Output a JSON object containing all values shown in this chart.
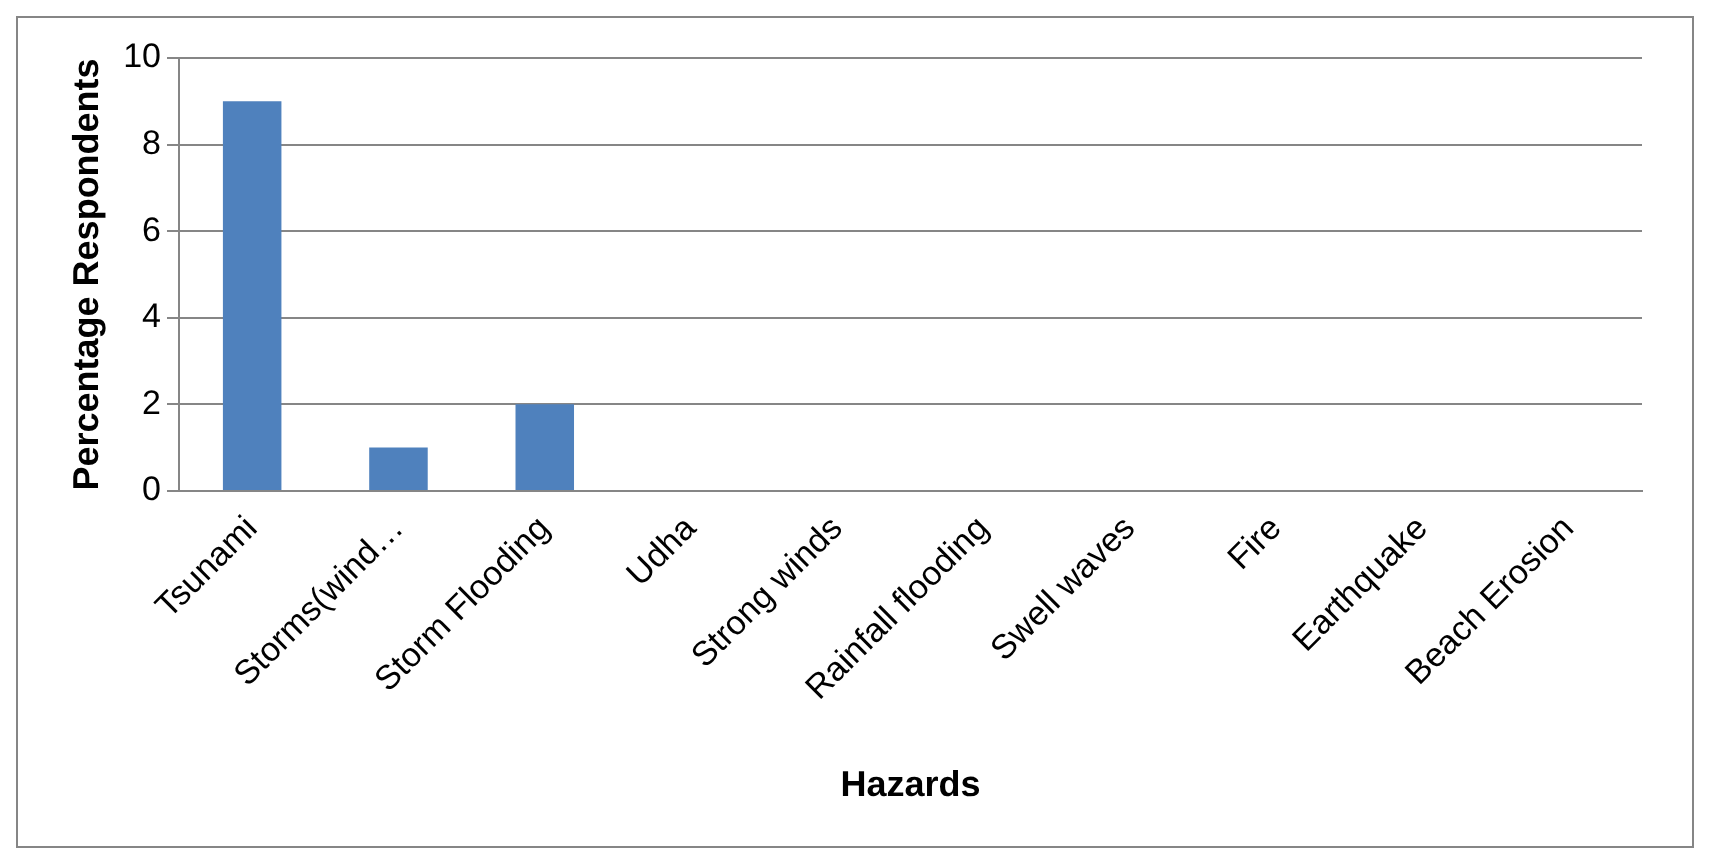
{
  "chart_data": {
    "type": "bar",
    "xlabel": "Hazards",
    "ylabel": "Percentage Respondents",
    "categories": [
      "Tsunami",
      "Storms(wind…",
      "Storm Flooding",
      "Udha",
      "Strong winds",
      "Rainfall flooding",
      "Swell waves",
      "Fire",
      "Earthquake",
      "Beach Erosion"
    ],
    "values": [
      9,
      1,
      2,
      0,
      0,
      0,
      0,
      0,
      0,
      0
    ],
    "color": "#4f81bd",
    "ylim": [
      0,
      10
    ],
    "yticks": [
      0,
      2,
      4,
      6,
      8,
      10
    ],
    "grid": "y",
    "legend": false
  }
}
